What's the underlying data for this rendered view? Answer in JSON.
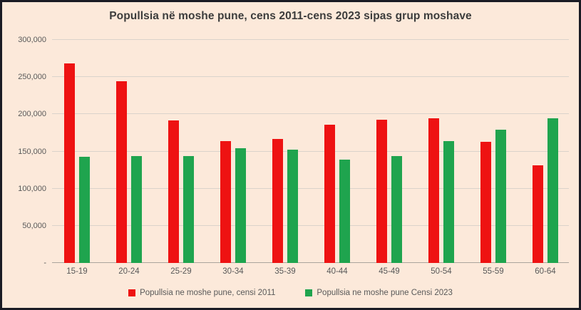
{
  "chart_data": {
    "type": "bar",
    "title": "Popullsia në moshe pune, cens 2011-cens 2023 sipas grup moshave",
    "categories": [
      "15-19",
      "20-24",
      "25-29",
      "30-34",
      "35-39",
      "40-44",
      "45-49",
      "50-54",
      "55-59",
      "60-64"
    ],
    "series": [
      {
        "name": "Popullsia ne moshe pune, censi 2011",
        "color": "#ee1212",
        "values": [
          268000,
          244000,
          192000,
          164000,
          167000,
          186000,
          193000,
          195000,
          163000,
          131000
        ]
      },
      {
        "name": "Popullsia ne moshe pune Censi 2023",
        "color": "#1fa44e",
        "values": [
          143000,
          144000,
          144000,
          154000,
          152000,
          139000,
          144000,
          164000,
          179000,
          195000
        ]
      }
    ],
    "xlabel": "",
    "ylabel": "",
    "ylim": [
      0,
      300000
    ],
    "ytick_step": 50000,
    "ytick_labels": [
      "-",
      "50,000",
      "100,000",
      "150,000",
      "200,000",
      "250,000",
      "300,000"
    ],
    "grid": true,
    "legend_position": "bottom"
  },
  "colors": {
    "background": "#fce9da",
    "frame_border": "#1b1b24",
    "gridline": "#dad3cb",
    "axis_line": "#aaa49d",
    "tick_text": "#595959",
    "title_text": "#3c3c3c"
  }
}
